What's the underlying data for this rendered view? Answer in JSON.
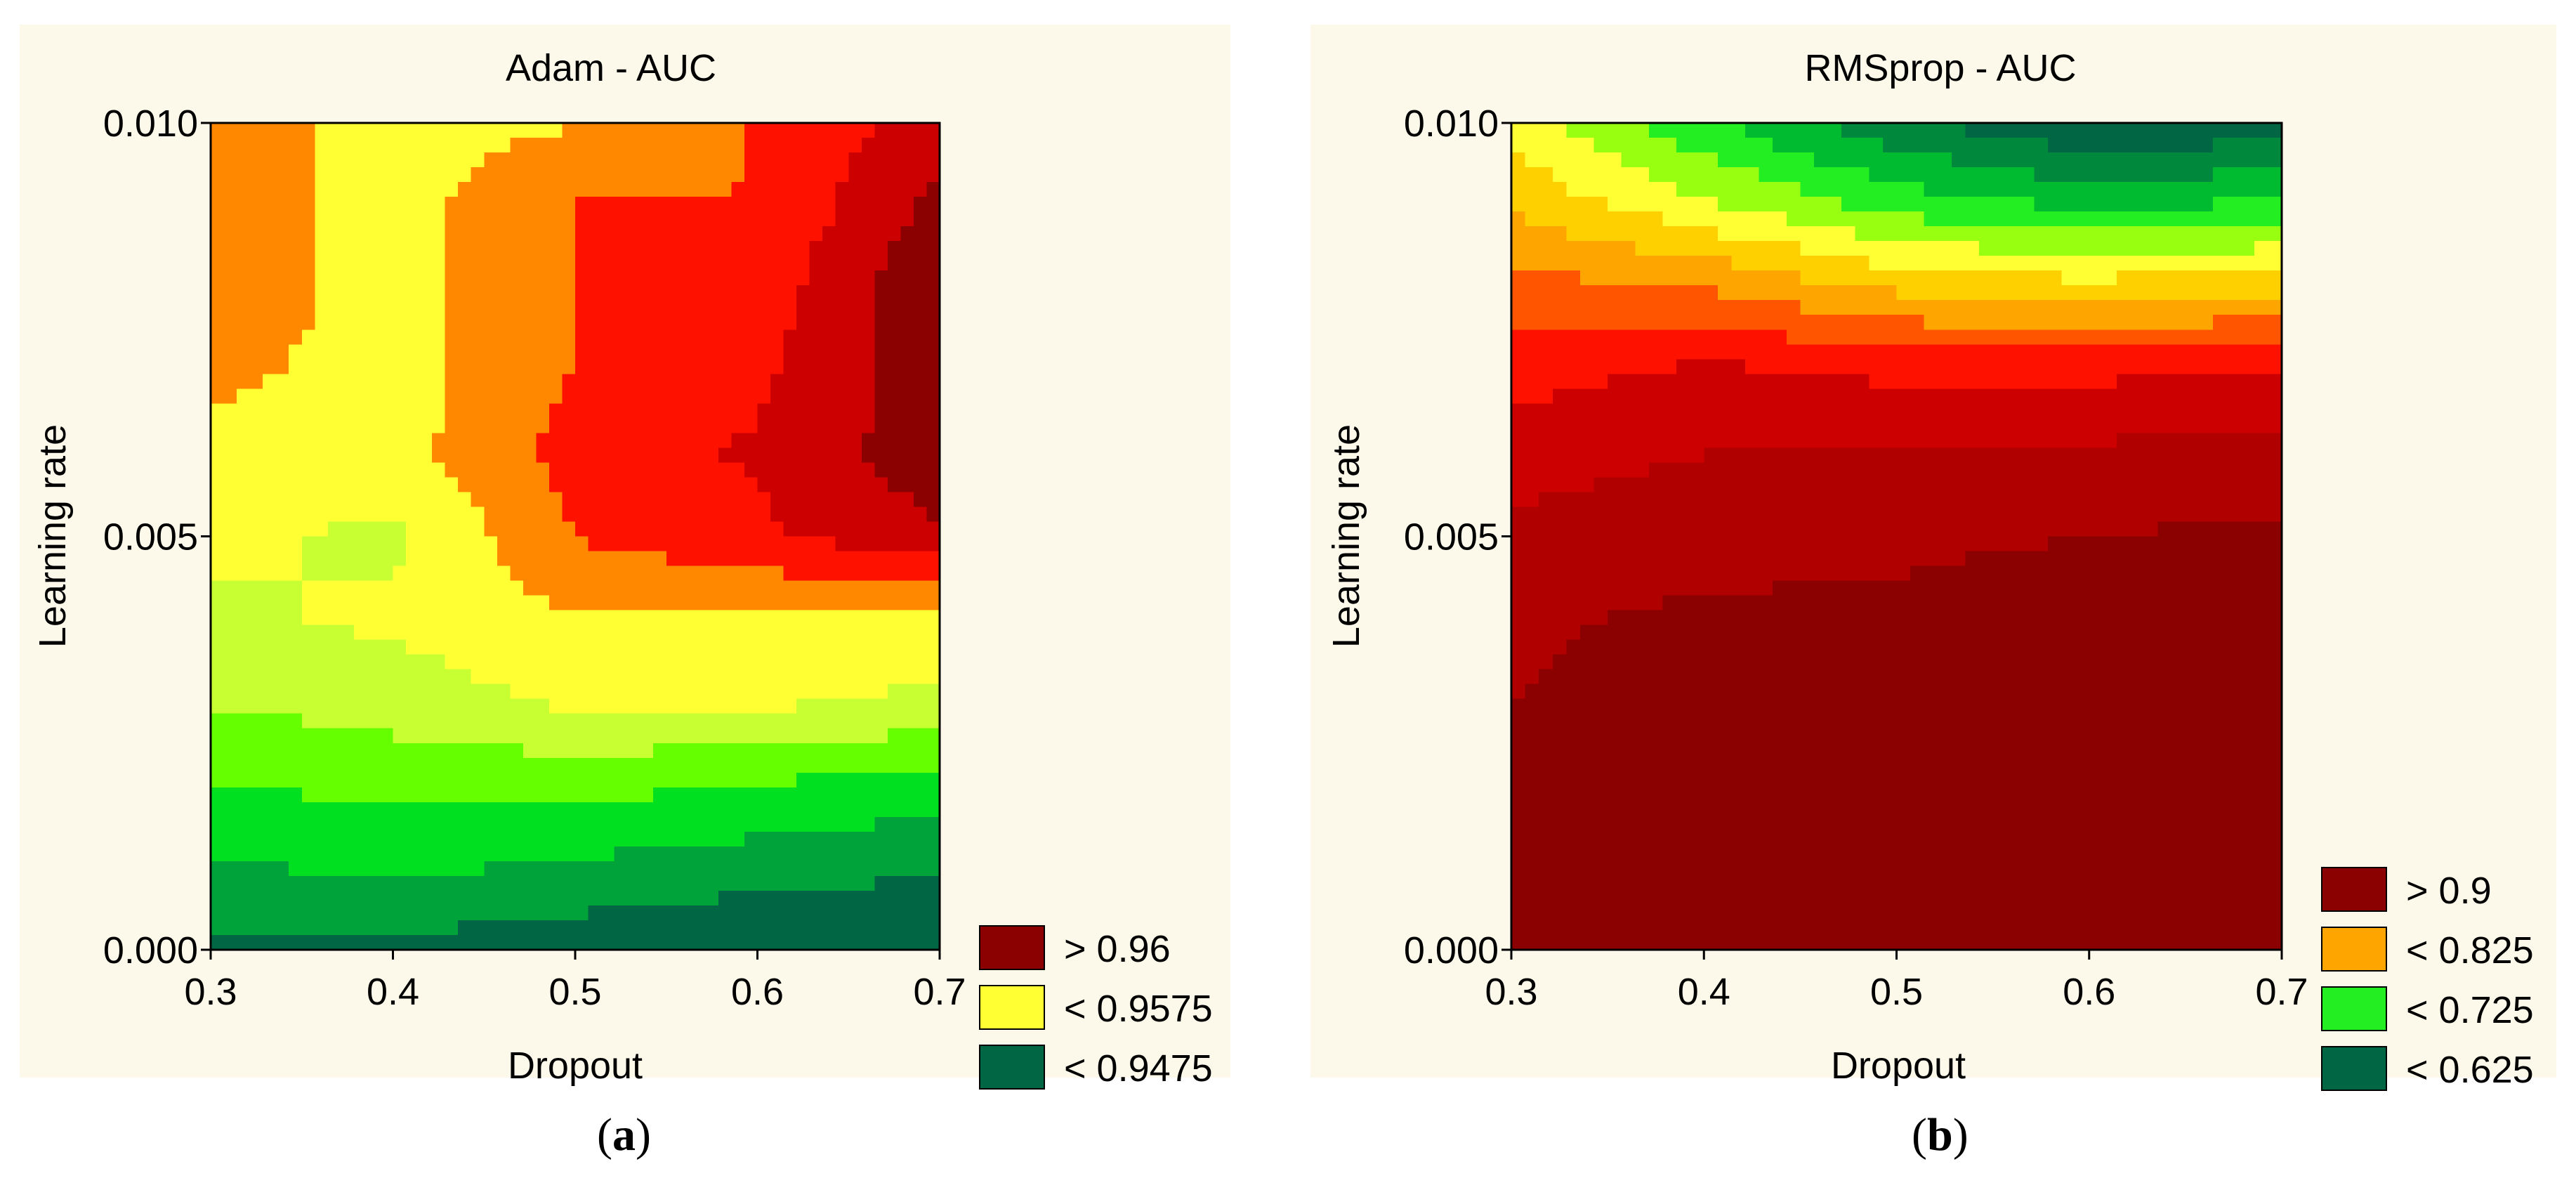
{
  "chart_data": [
    {
      "type": "contour",
      "panel_label": "a",
      "title": "Adam - AUC",
      "xlabel": "Dropout",
      "ylabel": "Learning rate",
      "xlim": [
        0.3,
        0.7
      ],
      "ylim": [
        0.0,
        0.01
      ],
      "x_ticks": [
        "0.3",
        "0.4",
        "0.5",
        "0.6",
        "0.7"
      ],
      "y_ticks": [
        "0.000",
        "0.005",
        "0.010"
      ],
      "legend": [
        {
          "label": "> 0.96",
          "color": "#8b0000"
        },
        {
          "label": "< 0.9575",
          "color": "#ffff33"
        },
        {
          "label": "< 0.9475",
          "color": "#006644"
        }
      ],
      "level_colors": [
        "#006644",
        "#00a33a",
        "#00e020",
        "#66ff00",
        "#c8ff33",
        "#ffff33",
        "#ff8800",
        "#ff1100",
        "#cc0000",
        "#8b0000"
      ],
      "grid_x": [
        0.3,
        0.4,
        0.5,
        0.6,
        0.7
      ],
      "grid_y": [
        0.0,
        0.001,
        0.002,
        0.003,
        0.004,
        0.005,
        0.006,
        0.007,
        0.008,
        0.009,
        0.01
      ],
      "z": [
        [
          0.946,
          0.946,
          0.945,
          0.944,
          0.944
        ],
        [
          0.949,
          0.95,
          0.949,
          0.948,
          0.947
        ],
        [
          0.952,
          0.953,
          0.953,
          0.952,
          0.951
        ],
        [
          0.955,
          0.956,
          0.958,
          0.958,
          0.957
        ],
        [
          0.957,
          0.958,
          0.96,
          0.96,
          0.959
        ],
        [
          0.958,
          0.957,
          0.963,
          0.965,
          0.968
        ],
        [
          0.959,
          0.959,
          0.964,
          0.966,
          0.97
        ],
        [
          0.961,
          0.959,
          0.963,
          0.965,
          0.97
        ],
        [
          0.962,
          0.959,
          0.963,
          0.964,
          0.971
        ],
        [
          0.962,
          0.959,
          0.963,
          0.963,
          0.969
        ],
        [
          0.962,
          0.959,
          0.96,
          0.963,
          0.967
        ]
      ]
    },
    {
      "type": "contour",
      "panel_label": "b",
      "title": "RMSprop - AUC",
      "xlabel": "Dropout",
      "ylabel": "Learning rate",
      "xlim": [
        0.3,
        0.7
      ],
      "ylim": [
        0.0,
        0.01
      ],
      "x_ticks": [
        "0.3",
        "0.4",
        "0.5",
        "0.6",
        "0.7"
      ],
      "y_ticks": [
        "0.000",
        "0.005",
        "0.010"
      ],
      "legend": [
        {
          "label": "> 0.9",
          "color": "#8b0000"
        },
        {
          "label": "< 0.825",
          "color": "#ffa500"
        },
        {
          "label": "< 0.725",
          "color": "#22ee22"
        },
        {
          "label": "< 0.625",
          "color": "#006644"
        }
      ],
      "level_colors": [
        "#006644",
        "#00883c",
        "#00bb30",
        "#22ee22",
        "#99ff11",
        "#ffff33",
        "#ffd000",
        "#ffa500",
        "#ff5500",
        "#ff1100",
        "#cc0000",
        "#b00000",
        "#8b0000"
      ],
      "grid_x": [
        0.3,
        0.4,
        0.5,
        0.6,
        0.7
      ],
      "grid_y": [
        0.0,
        0.001,
        0.002,
        0.003,
        0.004,
        0.005,
        0.006,
        0.007,
        0.008,
        0.009,
        0.01
      ],
      "z": [
        [
          0.905,
          0.91,
          0.905,
          0.89,
          0.895
        ],
        [
          0.905,
          0.91,
          0.905,
          0.905,
          0.905
        ],
        [
          0.9,
          0.905,
          0.905,
          0.91,
          0.91
        ],
        [
          0.89,
          0.905,
          0.905,
          0.915,
          0.915
        ],
        [
          0.885,
          0.895,
          0.895,
          0.905,
          0.91
        ],
        [
          0.87,
          0.88,
          0.885,
          0.89,
          0.895
        ],
        [
          0.855,
          0.865,
          0.865,
          0.87,
          0.875
        ],
        [
          0.83,
          0.845,
          0.835,
          0.835,
          0.84
        ],
        [
          0.8,
          0.79,
          0.76,
          0.75,
          0.76
        ],
        [
          0.76,
          0.72,
          0.68,
          0.66,
          0.67
        ],
        [
          0.73,
          0.67,
          0.62,
          0.59,
          0.6
        ]
      ]
    }
  ]
}
